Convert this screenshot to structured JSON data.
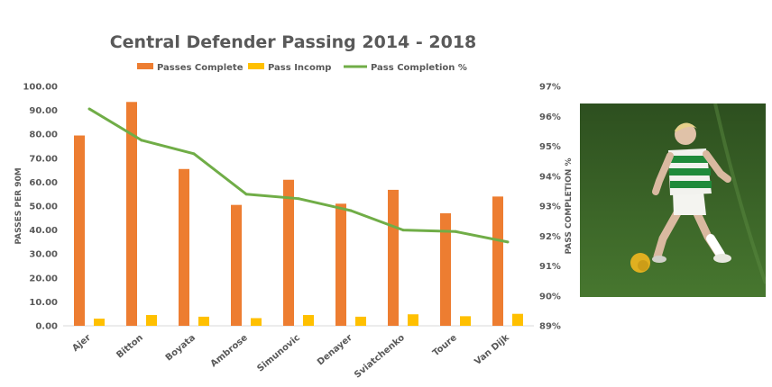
{
  "chart_data": {
    "type": "bar",
    "title": "Central Defender Passing 2014 - 2018",
    "categories": [
      "Ajer",
      "Bitton",
      "Boyata",
      "Ambrose",
      "Simunovic",
      "Denayer",
      "Sviatchenko",
      "Toure",
      "Van Dijk"
    ],
    "series": [
      {
        "name": "Passes Complete",
        "type": "bar",
        "axis": "left",
        "color": "#ED7D31",
        "values": [
          79.5,
          93.5,
          65.5,
          50.5,
          61.0,
          51.0,
          56.8,
          47.0,
          54.0
        ]
      },
      {
        "name": "Pass Incomp",
        "type": "bar",
        "axis": "left",
        "color": "#FFC000",
        "values": [
          3.0,
          4.5,
          3.8,
          3.2,
          4.5,
          3.8,
          4.8,
          4.0,
          5.0
        ]
      },
      {
        "name": "Pass Completion %",
        "type": "line",
        "axis": "right",
        "color": "#70AD47",
        "values": [
          96.25,
          95.2,
          94.75,
          93.4,
          93.25,
          92.85,
          92.2,
          92.15,
          91.8
        ]
      }
    ],
    "ylabel": "PASSES PER 90M",
    "y2label": "PASS COMPLETION %",
    "ylim": [
      0,
      100
    ],
    "y2lim": [
      89,
      97
    ],
    "yticks": [
      "0.00",
      "10.00",
      "20.00",
      "30.00",
      "40.00",
      "50.00",
      "60.00",
      "70.00",
      "80.00",
      "90.00",
      "100.00"
    ],
    "y2ticks": [
      "89%",
      "90%",
      "91%",
      "92%",
      "93%",
      "94%",
      "95%",
      "96%",
      "97%"
    ],
    "grid": false,
    "legend": "top"
  },
  "photo": {
    "alt_icon": "player-photo",
    "colors": {
      "pitch": "#3f6b2a",
      "pitch_dark": "#2e5220",
      "jersey_green": "#1f8a3a",
      "jersey_white": "#f2f2ee",
      "ball": "#e0b020"
    }
  }
}
